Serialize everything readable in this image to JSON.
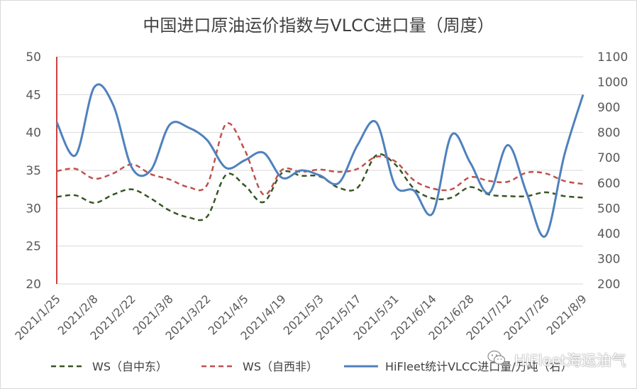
{
  "chart_data": {
    "type": "line",
    "title": "中国进口原油运价指数与VLCC进口量（周度）",
    "x_tick_labels": [
      "2021/1/25",
      "2021/2/8",
      "2021/2/22",
      "2021/3/8",
      "2021/3/22",
      "2021/4/5",
      "2021/4/19",
      "2021/5/3",
      "2021/5/17",
      "2021/5/31",
      "2021/6/14",
      "2021/6/28",
      "2021/7/12",
      "2021/7/26",
      "2021/8/9"
    ],
    "y_left": {
      "min": 20,
      "max": 50,
      "step": 5
    },
    "y_right": {
      "min": 200,
      "max": 1100,
      "step": 100
    },
    "legend_position": "bottom",
    "series": [
      {
        "name": "WS（自中东）",
        "axis": "left",
        "color": "#375623",
        "dash": "dashed",
        "values": [
          31.5,
          31.7,
          30.7,
          31.8,
          32.5,
          31.3,
          29.7,
          28.8,
          28.9,
          34.4,
          33.0,
          30.8,
          34.7,
          34.3,
          34.2,
          32.7,
          32.7,
          37.0,
          35.8,
          32.6,
          31.3,
          31.4,
          32.8,
          31.8,
          31.6,
          31.6,
          32.1,
          31.6,
          31.4
        ]
      },
      {
        "name": "WS（自西非）",
        "axis": "left",
        "color": "#c0504d",
        "dash": "dashed",
        "values": [
          34.9,
          35.2,
          33.9,
          34.6,
          35.8,
          34.5,
          33.8,
          32.8,
          33.1,
          41.1,
          37.7,
          31.8,
          35.1,
          34.8,
          35.1,
          34.8,
          35.2,
          36.8,
          36.2,
          33.7,
          32.6,
          32.5,
          34.1,
          33.6,
          33.5,
          34.7,
          34.6,
          33.6,
          33.2
        ]
      },
      {
        "name": "HiFleet统计VLCC进口量/万吨（右）",
        "axis": "right",
        "color": "#4f81bd",
        "dash": "solid",
        "values": [
          840,
          710,
          980,
          910,
          660,
          650,
          830,
          820,
          770,
          660,
          690,
          720,
          620,
          650,
          630,
          600,
          750,
          840,
          590,
          570,
          480,
          790,
          680,
          560,
          750,
          560,
          390,
          710,
          950
        ]
      }
    ]
  },
  "watermark": "HiFleet海运油气"
}
